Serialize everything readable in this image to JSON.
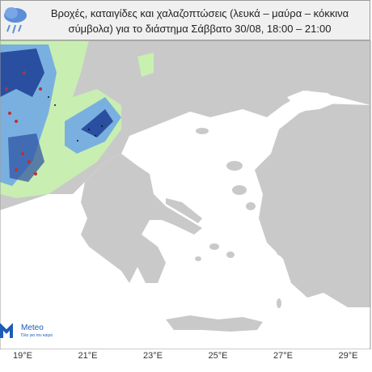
{
  "header": {
    "title_lines": [
      "Βροχές, καταιγίδες και χαλαζοπτώσεις (λευκά – μαύρα – κόκκινα",
      "σύμβολα) για το διάστημα Σάββατο 30/08, 18:00 – 21:00"
    ]
  },
  "logo": {
    "name": "Meteo",
    "tagline": "Όλα για τον καιρό"
  },
  "map": {
    "lon_labels": [
      "19°E",
      "21°E",
      "23°E",
      "25°E",
      "27°E",
      "29°E"
    ]
  }
}
